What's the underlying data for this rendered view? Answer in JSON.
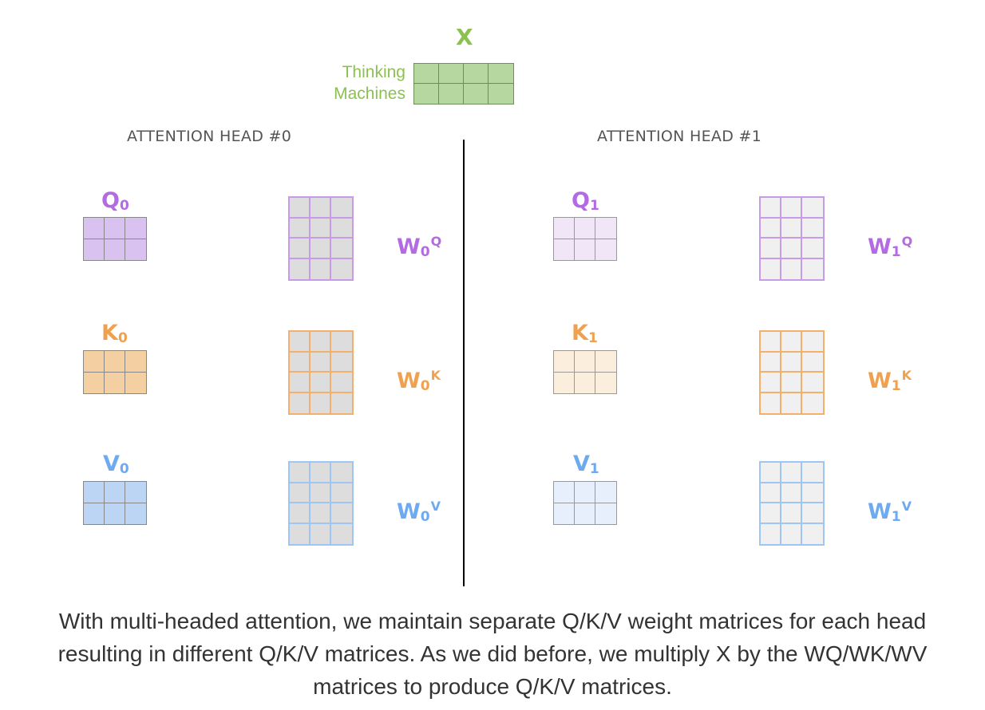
{
  "input": {
    "label": "X",
    "words": [
      "Thinking",
      "Machines"
    ],
    "color": "#b6d7a0",
    "border": "#6b8f55",
    "label_color": "#8cc152"
  },
  "heads": [
    {
      "title": "ATTENTION HEAD #0",
      "q": {
        "label": "Q",
        "sub": "0"
      },
      "k": {
        "label": "K",
        "sub": "0"
      },
      "v": {
        "label": "V",
        "sub": "0"
      },
      "wq": {
        "label": "W",
        "sub": "0",
        "sup": "Q"
      },
      "wk": {
        "label": "W",
        "sub": "0",
        "sup": "K"
      },
      "wv": {
        "label": "W",
        "sub": "0",
        "sup": "V"
      }
    },
    {
      "title": "ATTENTION HEAD #1",
      "q": {
        "label": "Q",
        "sub": "1"
      },
      "k": {
        "label": "K",
        "sub": "1"
      },
      "v": {
        "label": "V",
        "sub": "1"
      },
      "wq": {
        "label": "W",
        "sub": "1",
        "sup": "Q"
      },
      "wk": {
        "label": "W",
        "sub": "1",
        "sup": "K"
      },
      "wv": {
        "label": "W",
        "sub": "1",
        "sup": "V"
      }
    }
  ],
  "colors": {
    "q_label": "#b36ae2",
    "k_label": "#f0a150",
    "v_label": "#6eaaf0",
    "q_fill_head0": "#d9c2f0",
    "k_fill_head0": "#f3cfa1",
    "v_fill_head0": "#bcd5f5",
    "q_fill_head1": "#f0e6f8",
    "k_fill_head1": "#fbeedd",
    "v_fill_head1": "#e6effb",
    "weight_fill_head0": "#dddddd",
    "weight_fill_head1": "#f0f0f0",
    "q_weight_border": "#c89be8",
    "k_weight_border": "#f2b06c",
    "v_weight_border": "#9fc5f3"
  },
  "caption": [
    "With multi-headed attention, we maintain separate Q/K/V weight matrices for each head",
    "resulting in different Q/K/V matrices. As we did before, we multiply X by the WQ/WK/WV",
    "matrices to produce Q/K/V matrices."
  ]
}
